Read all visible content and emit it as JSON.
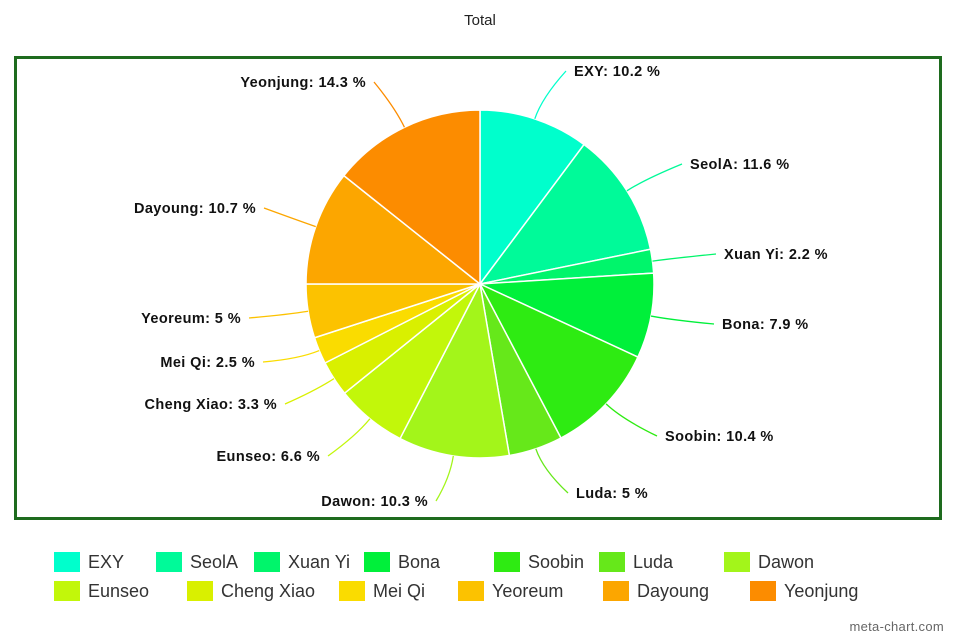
{
  "chart_data": {
    "type": "pie",
    "title": "Total",
    "slices": [
      {
        "name": "EXY",
        "value": 10.2,
        "label": "EXY: 10.2 %",
        "color": "#00ffcc"
      },
      {
        "name": "SeolA",
        "value": 11.6,
        "label": "SeolA: 11.6 %",
        "color": "#00fa99"
      },
      {
        "name": "Xuan Yi",
        "value": 2.2,
        "label": "Xuan Yi: 2.2 %",
        "color": "#00f56b"
      },
      {
        "name": "Bona",
        "value": 7.9,
        "label": "Bona: 7.9 %",
        "color": "#00f03a"
      },
      {
        "name": "Soobin",
        "value": 10.4,
        "label": "Soobin: 10.4 %",
        "color": "#2eeb12"
      },
      {
        "name": "Luda",
        "value": 5,
        "label": "Luda: 5 %",
        "color": "#66e81a"
      },
      {
        "name": "Dawon",
        "value": 10.3,
        "label": "Dawon: 10.3 %",
        "color": "#a3f51a"
      },
      {
        "name": "Eunseo",
        "value": 6.6,
        "label": "Eunseo: 6.6 %",
        "color": "#c2f70a"
      },
      {
        "name": "Cheng Xiao",
        "value": 3.3,
        "label": "Cheng Xiao: 3.3 %",
        "color": "#d9f000"
      },
      {
        "name": "Mei Qi",
        "value": 2.5,
        "label": "Mei Qi: 2.5 %",
        "color": "#fadc00"
      },
      {
        "name": "Yeoreum",
        "value": 5,
        "label": "Yeoreum: 5 %",
        "color": "#fcc200"
      },
      {
        "name": "Dayoung",
        "value": 10.7,
        "label": "Dayoung: 10.7 %",
        "color": "#fca600"
      },
      {
        "name": "Yeonjung",
        "value": 14.3,
        "label": "Yeonjung: 14.3 %",
        "color": "#fc8c00"
      }
    ],
    "legend_position": "bottom",
    "frame_color": "#1e6b1e"
  },
  "watermark": "meta-chart.com"
}
